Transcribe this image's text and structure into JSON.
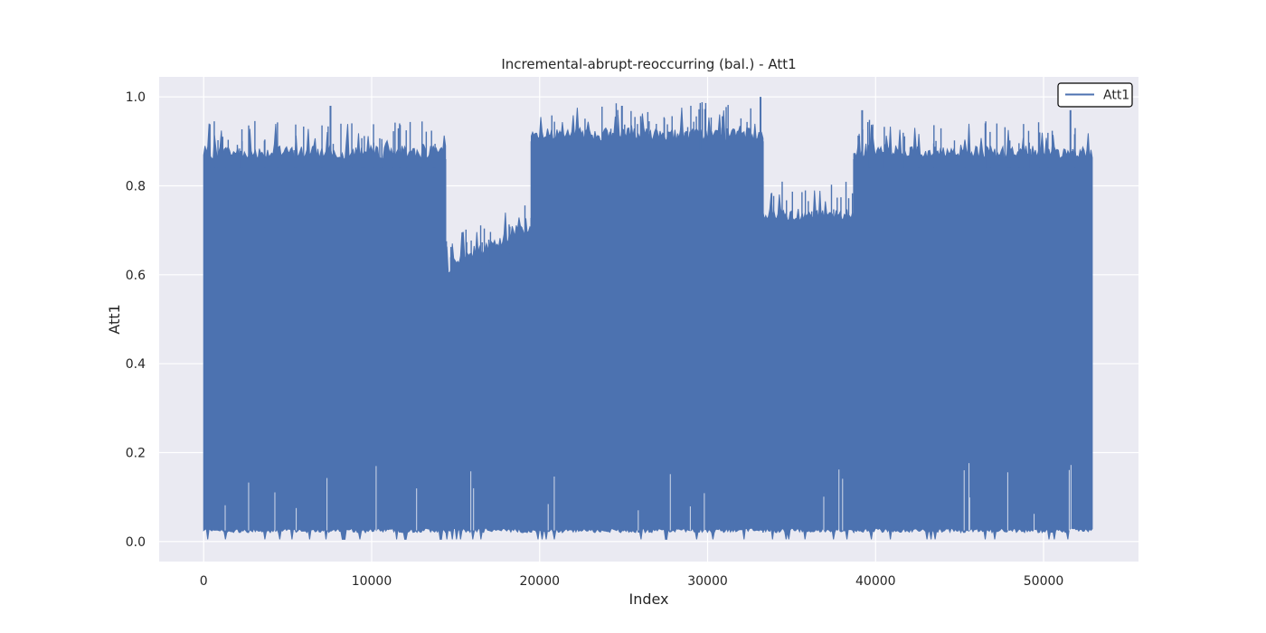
{
  "chart_data": {
    "type": "line",
    "title": "Incremental-abrupt-reoccurring (bal.) - Att1",
    "xlabel": "Index",
    "ylabel": "Att1",
    "xlim": [
      -2650,
      55650
    ],
    "ylim": [
      -0.045,
      1.045
    ],
    "x_ticks": [
      0,
      10000,
      20000,
      30000,
      40000,
      50000
    ],
    "y_ticks": [
      0.0,
      0.2,
      0.4,
      0.6,
      0.8,
      1.0
    ],
    "x_tick_labels": [
      "0",
      "10000",
      "20000",
      "30000",
      "40000",
      "50000"
    ],
    "y_tick_labels": [
      "0.0",
      "0.2",
      "0.4",
      "0.6",
      "0.8",
      "1.0"
    ],
    "grid": true,
    "legend_position": "top-right",
    "colors": {
      "series": "#4c72b0",
      "plot_bg": "#eaeaf2",
      "grid": "#ffffff"
    },
    "series": [
      {
        "name": "Att1",
        "segments": [
          {
            "x_start": 0,
            "x_end": 14400,
            "y_min": 0.02,
            "y_max_typical": 0.86
          },
          {
            "x_start": 14400,
            "x_end": 19500,
            "y_min": 0.02,
            "y_max_typical": 0.6,
            "y_max_end": 0.69
          },
          {
            "x_start": 19500,
            "x_end": 33300,
            "y_min": 0.02,
            "y_max_typical": 0.9
          },
          {
            "x_start": 33300,
            "x_end": 38700,
            "y_min": 0.02,
            "y_max_typical": 0.72
          },
          {
            "x_start": 38700,
            "x_end": 52900,
            "y_min": 0.02,
            "y_max_typical": 0.86
          }
        ],
        "peaks": [
          {
            "x": 7550,
            "y": 0.98
          },
          {
            "x": 33150,
            "y": 1.0
          },
          {
            "x": 24900,
            "y": 0.98
          },
          {
            "x": 39200,
            "y": 0.97
          },
          {
            "x": 51600,
            "y": 0.97
          }
        ]
      }
    ]
  }
}
